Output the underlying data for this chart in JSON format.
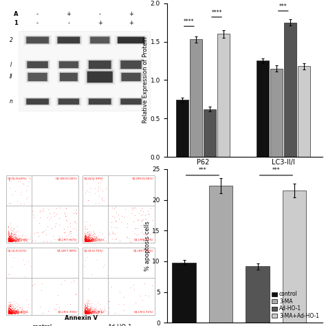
{
  "chart1": {
    "ylabel": "Relative Expression of Protein",
    "ylim": [
      0.0,
      2.0
    ],
    "yticks": [
      0.0,
      0.5,
      1.0,
      1.5,
      2.0
    ],
    "groups": [
      "P62",
      "LC3-II/I"
    ],
    "group_positions": [
      0.28,
      0.95
    ],
    "categories": [
      "control",
      "3-MA",
      "Ad-HO-1",
      "3-MA+Ad-HO-1"
    ],
    "colors": [
      "#111111",
      "#999999",
      "#555555",
      "#cccccc"
    ],
    "values": [
      [
        0.74,
        1.53,
        0.62,
        1.6
      ],
      [
        1.25,
        1.15,
        1.75,
        1.18
      ]
    ],
    "errors": [
      [
        0.03,
        0.04,
        0.03,
        0.05
      ],
      [
        0.03,
        0.04,
        0.04,
        0.04
      ]
    ],
    "bar_width": 0.115
  },
  "chart2": {
    "ylabel": "% apoptosis cells",
    "ylim": [
      0,
      25
    ],
    "yticks": [
      0,
      5,
      10,
      15,
      20,
      25
    ],
    "categories": [
      "control",
      "3-MA",
      "Ad-HO-1",
      "3-MA+Ad-HO-1"
    ],
    "colors": [
      "#111111",
      "#aaaaaa",
      "#555555",
      "#cccccc"
    ],
    "values": [
      9.8,
      22.3,
      9.2,
      21.5
    ],
    "errors": [
      0.4,
      1.2,
      0.5,
      1.1
    ],
    "bar_width": 0.22,
    "bar_positions": [
      0.12,
      0.42,
      0.72,
      1.02
    ],
    "legend": [
      {
        "label": "control",
        "color": "#111111"
      },
      {
        "label": "3-MA",
        "color": "#aaaaaa"
      },
      {
        "label": "Ad-HO-1",
        "color": "#555555"
      },
      {
        "label": "3-MA+Ad-HO-1",
        "color": "#cccccc"
      }
    ]
  },
  "wb": {
    "labels_a": [
      "A",
      "1",
      "2",
      "I",
      "II",
      "n"
    ],
    "plus_minus": [
      [
        "-",
        "+",
        "-",
        "+"
      ],
      [
        "-",
        "-",
        "+",
        "+"
      ]
    ]
  },
  "figure": {
    "bg_color": "#ffffff"
  }
}
